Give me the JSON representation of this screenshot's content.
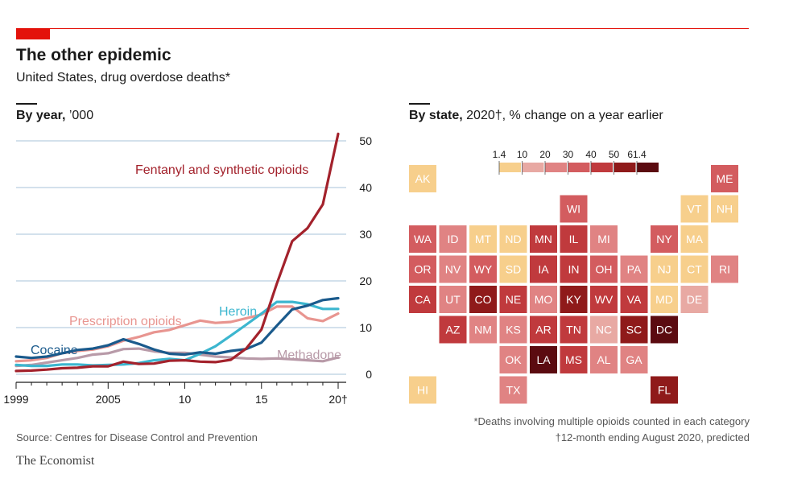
{
  "header": {
    "title": "The other epidemic",
    "subtitle": "United States, drug overdose deaths*"
  },
  "line_section": {
    "bold": "By year,",
    "rest": " ’000"
  },
  "map_section": {
    "bold": "By state,",
    "rest": " 2020†, % change on a year earlier"
  },
  "footer": {
    "source": "Source: Centres for Disease Control and Prevention",
    "brand": "The Economist",
    "note1": "*Deaths involving multiple opioids counted in each category",
    "note2": "†12-month ending August 2020, predicted"
  },
  "colors": {
    "fentanyl": "#a3222c",
    "prescription": "#e89590",
    "heroin": "#3cb6cf",
    "cocaine": "#1a5a8c",
    "methadone": "#b89aa8",
    "grid": "#b9cfe0"
  },
  "chart_data": [
    {
      "type": "line",
      "title": "By year, ’000",
      "xlabel": "",
      "ylabel": "",
      "ylim": [
        0,
        50
      ],
      "yticks": [
        0,
        10,
        20,
        30,
        40,
        50
      ],
      "xlim": [
        1999,
        2020
      ],
      "xtick_labels": [
        {
          "x": 1999,
          "label": "1999"
        },
        {
          "x": 2005,
          "label": "2005"
        },
        {
          "x": 2010,
          "label": "10"
        },
        {
          "x": 2015,
          "label": "15"
        },
        {
          "x": 2020,
          "label": "20†"
        }
      ],
      "x": [
        1999,
        2000,
        2001,
        2002,
        2003,
        2004,
        2005,
        2006,
        2007,
        2008,
        2009,
        2010,
        2011,
        2012,
        2013,
        2014,
        2015,
        2016,
        2017,
        2018,
        2019,
        2020
      ],
      "series": [
        {
          "name": "Fentanyl and synthetic opioids",
          "color_key": "fentanyl",
          "values": [
            0.7,
            0.8,
            1.0,
            1.3,
            1.4,
            1.7,
            1.7,
            2.7,
            2.2,
            2.3,
            2.9,
            3.0,
            2.7,
            2.6,
            3.1,
            5.5,
            9.6,
            19.4,
            28.5,
            31.3,
            36.4,
            51.5
          ]
        },
        {
          "name": "Prescription opioids",
          "color_key": "prescription",
          "values": [
            2.8,
            3.0,
            3.5,
            4.5,
            5.0,
            5.3,
            6.0,
            7.2,
            8.0,
            9.0,
            9.5,
            10.5,
            11.5,
            11.0,
            11.2,
            12.0,
            12.8,
            14.5,
            14.5,
            12.0,
            11.4,
            13.0
          ]
        },
        {
          "name": "Heroin",
          "color_key": "heroin",
          "values": [
            2.0,
            1.8,
            1.8,
            2.1,
            2.1,
            1.9,
            2.0,
            2.1,
            2.4,
            3.0,
            3.3,
            3.0,
            4.4,
            6.0,
            8.3,
            10.6,
            13.0,
            15.5,
            15.5,
            15.0,
            14.0,
            14.0
          ]
        },
        {
          "name": "Cocaine",
          "color_key": "cocaine",
          "values": [
            3.8,
            3.5,
            3.8,
            4.5,
            5.2,
            5.5,
            6.2,
            7.5,
            6.5,
            5.3,
            4.4,
            4.2,
            4.7,
            4.4,
            5.0,
            5.4,
            6.8,
            10.4,
            13.9,
            14.7,
            15.9,
            16.3
          ]
        },
        {
          "name": "Methadone",
          "color_key": "methadone",
          "values": [
            1.8,
            2.0,
            2.5,
            3.0,
            3.5,
            4.2,
            4.5,
            5.4,
            5.5,
            4.9,
            4.6,
            4.6,
            4.2,
            3.8,
            3.6,
            3.4,
            3.3,
            3.4,
            3.2,
            3.0,
            2.8,
            3.6
          ]
        }
      ],
      "annotations": [
        {
          "text": "Fentanyl and synthetic opioids",
          "series": "Fentanyl and synthetic opioids"
        },
        {
          "text": "Prescription opioids",
          "series": "Prescription opioids"
        },
        {
          "text": "Heroin",
          "series": "Heroin"
        },
        {
          "text": "Cocaine",
          "series": "Cocaine"
        },
        {
          "text": "Methadone",
          "series": "Methadone"
        }
      ]
    },
    {
      "type": "heatmap",
      "title": "By state, 2020†, % change on a year earlier",
      "legend_ticks": [
        "1.4",
        "10",
        "20",
        "30",
        "40",
        "50",
        "61.4"
      ],
      "bins": [
        {
          "range": "1.4–10",
          "color": "#f7cf8c"
        },
        {
          "range": "10–20",
          "color": "#e8a9a3"
        },
        {
          "range": "20–30",
          "color": "#e08383"
        },
        {
          "range": "30–40",
          "color": "#d35c5f"
        },
        {
          "range": "40–50",
          "color": "#c03a3d"
        },
        {
          "range": "50–61.4",
          "color": "#8f1a1a"
        },
        {
          "range": "max",
          "color": "#5b0b10"
        }
      ],
      "states": [
        {
          "code": "AK",
          "bin": 0,
          "col": 0,
          "row": 0
        },
        {
          "code": "ME",
          "bin": 3,
          "col": 10,
          "row": 0
        },
        {
          "code": "WI",
          "bin": 3,
          "col": 5,
          "row": 1
        },
        {
          "code": "VT",
          "bin": 0,
          "col": 9,
          "row": 1
        },
        {
          "code": "NH",
          "bin": 0,
          "col": 10,
          "row": 1
        },
        {
          "code": "WA",
          "bin": 3,
          "col": 0,
          "row": 2
        },
        {
          "code": "ID",
          "bin": 2,
          "col": 1,
          "row": 2
        },
        {
          "code": "MT",
          "bin": 0,
          "col": 2,
          "row": 2
        },
        {
          "code": "ND",
          "bin": 0,
          "col": 3,
          "row": 2
        },
        {
          "code": "MN",
          "bin": 4,
          "col": 4,
          "row": 2
        },
        {
          "code": "IL",
          "bin": 4,
          "col": 5,
          "row": 2
        },
        {
          "code": "MI",
          "bin": 2,
          "col": 6,
          "row": 2
        },
        {
          "code": "NY",
          "bin": 3,
          "col": 8,
          "row": 2
        },
        {
          "code": "MA",
          "bin": 0,
          "col": 9,
          "row": 2
        },
        {
          "code": "OR",
          "bin": 3,
          "col": 0,
          "row": 3
        },
        {
          "code": "NV",
          "bin": 2,
          "col": 1,
          "row": 3
        },
        {
          "code": "WY",
          "bin": 3,
          "col": 2,
          "row": 3
        },
        {
          "code": "SD",
          "bin": 0,
          "col": 3,
          "row": 3
        },
        {
          "code": "IA",
          "bin": 4,
          "col": 4,
          "row": 3
        },
        {
          "code": "IN",
          "bin": 4,
          "col": 5,
          "row": 3
        },
        {
          "code": "OH",
          "bin": 3,
          "col": 6,
          "row": 3
        },
        {
          "code": "PA",
          "bin": 2,
          "col": 7,
          "row": 3
        },
        {
          "code": "NJ",
          "bin": 0,
          "col": 8,
          "row": 3
        },
        {
          "code": "CT",
          "bin": 0,
          "col": 9,
          "row": 3
        },
        {
          "code": "RI",
          "bin": 2,
          "col": 10,
          "row": 3
        },
        {
          "code": "CA",
          "bin": 4,
          "col": 0,
          "row": 4
        },
        {
          "code": "UT",
          "bin": 2,
          "col": 1,
          "row": 4
        },
        {
          "code": "CO",
          "bin": 5,
          "col": 2,
          "row": 4
        },
        {
          "code": "NE",
          "bin": 4,
          "col": 3,
          "row": 4
        },
        {
          "code": "MO",
          "bin": 2,
          "col": 4,
          "row": 4
        },
        {
          "code": "KY",
          "bin": 5,
          "col": 5,
          "row": 4
        },
        {
          "code": "WV",
          "bin": 4,
          "col": 6,
          "row": 4
        },
        {
          "code": "VA",
          "bin": 4,
          "col": 7,
          "row": 4
        },
        {
          "code": "MD",
          "bin": 0,
          "col": 8,
          "row": 4
        },
        {
          "code": "DE",
          "bin": 1,
          "col": 9,
          "row": 4
        },
        {
          "code": "AZ",
          "bin": 4,
          "col": 1,
          "row": 5
        },
        {
          "code": "NM",
          "bin": 2,
          "col": 2,
          "row": 5
        },
        {
          "code": "KS",
          "bin": 2,
          "col": 3,
          "row": 5
        },
        {
          "code": "AR",
          "bin": 4,
          "col": 4,
          "row": 5
        },
        {
          "code": "TN",
          "bin": 4,
          "col": 5,
          "row": 5
        },
        {
          "code": "NC",
          "bin": 1,
          "col": 6,
          "row": 5
        },
        {
          "code": "SC",
          "bin": 5,
          "col": 7,
          "row": 5
        },
        {
          "code": "DC",
          "bin": 6,
          "col": 8,
          "row": 5
        },
        {
          "code": "OK",
          "bin": 2,
          "col": 3,
          "row": 6
        },
        {
          "code": "LA",
          "bin": 6,
          "col": 4,
          "row": 6
        },
        {
          "code": "MS",
          "bin": 4,
          "col": 5,
          "row": 6
        },
        {
          "code": "AL",
          "bin": 2,
          "col": 6,
          "row": 6
        },
        {
          "code": "GA",
          "bin": 2,
          "col": 7,
          "row": 6
        },
        {
          "code": "HI",
          "bin": 0,
          "col": 0,
          "row": 7
        },
        {
          "code": "TX",
          "bin": 2,
          "col": 3,
          "row": 7
        },
        {
          "code": "FL",
          "bin": 5,
          "col": 8,
          "row": 7
        }
      ]
    }
  ]
}
